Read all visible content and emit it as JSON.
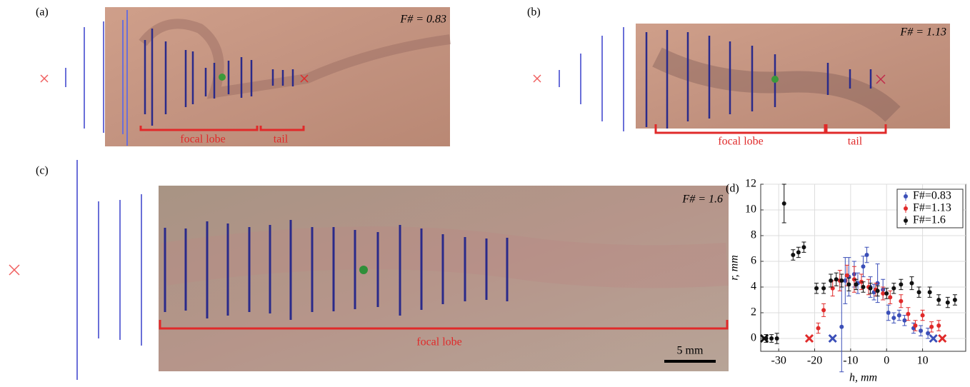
{
  "panels": [
    {
      "label": "(a)",
      "f_number": "F# = 0.83",
      "annotations": [
        "focal lobe",
        "tail"
      ]
    },
    {
      "label": "(b)",
      "f_number": "F# = 1.13",
      "annotations": [
        "focal lobe",
        "tail"
      ]
    },
    {
      "label": "(c)",
      "f_number": "F# = 1.6",
      "annotations": [
        "focal lobe"
      ],
      "scale_bar": "5 mm"
    }
  ],
  "chart_data": {
    "type": "scatter",
    "panel_label": "(d)",
    "x_label": "h, mm",
    "y_label": "r, mm",
    "xlim": [
      -35,
      22
    ],
    "ylim": [
      -1,
      12
    ],
    "xticks": [
      -30,
      -20,
      -10,
      0,
      10
    ],
    "yticks": [
      0,
      2,
      4,
      6,
      8,
      10,
      12
    ],
    "grid": true,
    "legend": "upper right",
    "series": [
      {
        "name": "F#=0.83",
        "color": "#3b4fb8",
        "x": [
          -12.5,
          -11.5,
          -10.5,
          -9,
          -8,
          -6.5,
          -5.5,
          -4.5,
          -3.5,
          -2.5,
          -1,
          0.5,
          2,
          3.5,
          5,
          7.5,
          9.5,
          11.5
        ],
        "values": [
          0.9,
          4.5,
          4.8,
          5.0,
          4.3,
          5.6,
          6.5,
          4.0,
          3.6,
          4.3,
          3.8,
          2.0,
          1.6,
          1.8,
          1.4,
          0.8,
          0.6,
          0.4
        ],
        "errors": [
          3.5,
          1.8,
          1.5,
          1.0,
          0.8,
          0.8,
          0.6,
          0.8,
          0.6,
          1.5,
          0.8,
          0.6,
          0.4,
          0.4,
          0.4,
          0.4,
          0.4,
          0.4
        ],
        "ends_x": [
          -15,
          13
        ],
        "ends_r": [
          0,
          0
        ]
      },
      {
        "name": "F#=1.13",
        "color": "#e02a2a",
        "x": [
          -19,
          -17.5,
          -15,
          -13,
          -11,
          -9,
          -7,
          -5,
          -3,
          -1,
          1,
          4,
          6,
          8,
          10,
          12.5,
          14.5
        ],
        "values": [
          0.8,
          2.2,
          3.9,
          4.5,
          4.9,
          4.6,
          4.4,
          4.0,
          3.8,
          3.5,
          3.2,
          2.9,
          1.9,
          1.0,
          1.8,
          0.9,
          1.0
        ],
        "errors": [
          0.4,
          0.5,
          0.6,
          0.8,
          0.8,
          1.0,
          0.6,
          0.6,
          0.5,
          0.5,
          0.5,
          0.5,
          0.5,
          0.4,
          0.4,
          0.4,
          0.4
        ],
        "ends_x": [
          -21.5,
          15.5
        ],
        "ends_r": [
          0,
          0
        ]
      },
      {
        "name": "F#=1.6",
        "color": "#111111",
        "x": [
          -33.5,
          -32,
          -30.5,
          -28.5,
          -26,
          -24.5,
          -23,
          -19.5,
          -17.5,
          -15.5,
          -14,
          -12.5,
          -10.5,
          -8.5,
          -6.5,
          -4.5,
          -2.5,
          0,
          2,
          4,
          7,
          9,
          12,
          14.5,
          17,
          19
        ],
        "values": [
          0,
          0,
          0,
          10.5,
          6.5,
          6.7,
          7.1,
          3.9,
          3.9,
          4.5,
          4.6,
          4.5,
          4.2,
          4.2,
          4.0,
          3.9,
          3.7,
          3.5,
          3.9,
          4.2,
          4.3,
          3.6,
          3.6,
          3.0,
          2.8,
          3.0
        ],
        "errors": [
          0.3,
          0.3,
          0.4,
          1.5,
          0.4,
          0.4,
          0.4,
          0.4,
          0.4,
          0.5,
          0.5,
          0.5,
          0.5,
          0.4,
          0.4,
          0.4,
          0.4,
          0.4,
          0.4,
          0.4,
          0.5,
          0.4,
          0.4,
          0.4,
          0.4,
          0.4
        ],
        "ends_x": [
          -34
        ],
        "ends_r": [
          0
        ]
      }
    ]
  }
}
